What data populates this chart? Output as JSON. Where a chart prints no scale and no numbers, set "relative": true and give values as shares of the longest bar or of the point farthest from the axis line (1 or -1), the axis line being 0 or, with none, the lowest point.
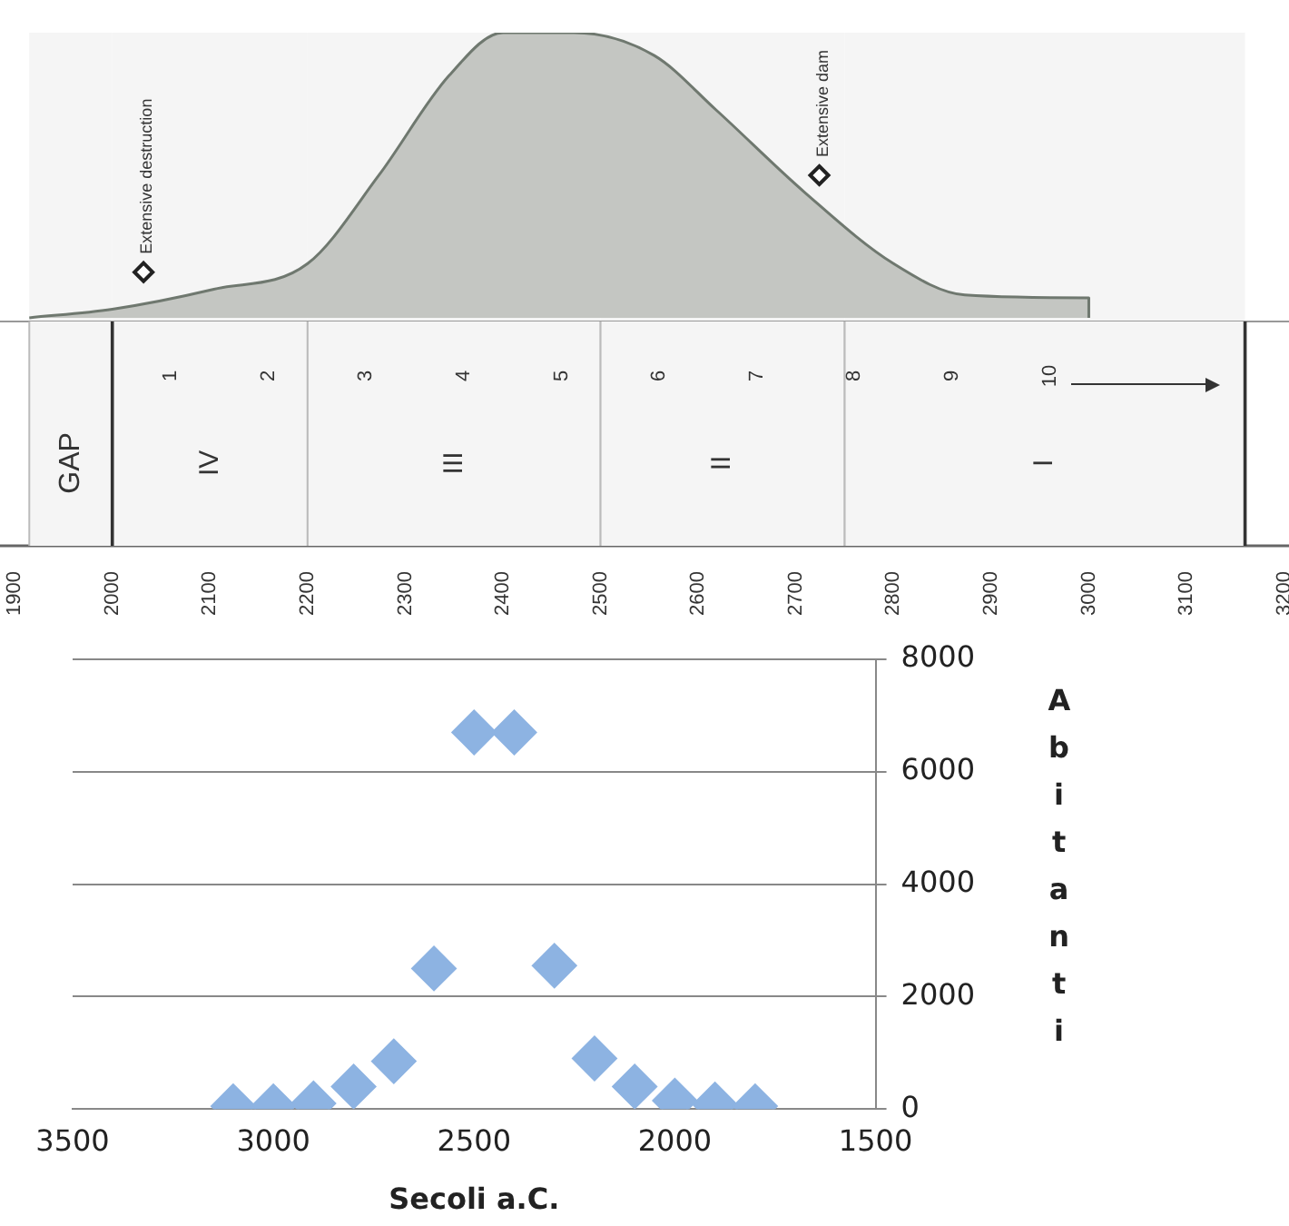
{
  "chart_data": [
    {
      "type": "area",
      "relative": true,
      "color": "#c4c6c2",
      "xlim": [
        1885,
        3205
      ],
      "xticks": [
        1900,
        2000,
        2100,
        2200,
        2300,
        2400,
        2500,
        2600,
        2700,
        2800,
        2900,
        3000,
        3100,
        3200
      ],
      "x": [
        1915,
        2000,
        2104,
        2200,
        2273,
        2345,
        2400,
        2473,
        2555,
        2618,
        2709,
        2800,
        2873,
        3000,
        3000
      ],
      "values": [
        0,
        0.03,
        0.1,
        0.19,
        0.5,
        0.85,
        1,
        1,
        0.92,
        0.73,
        0.44,
        0.19,
        0.08,
        0.07,
        0
      ],
      "annotations": [
        {
          "text": "Extensive destruction",
          "x": 2032,
          "y": 0.16
        },
        {
          "text": "Extensive dam",
          "x": 2724,
          "y": 0.5
        },
        "1",
        "2",
        "3",
        "4",
        "5",
        "6",
        "7",
        "8",
        "9",
        "10"
      ],
      "bands": [
        {
          "axis": "x",
          "from": 1915,
          "to": 2000,
          "label": "GAP",
          "color": "#f5f5f5"
        },
        {
          "axis": "x",
          "from": 2000,
          "to": 2200,
          "label": "IV",
          "color": "#f5f5f5"
        },
        {
          "axis": "x",
          "from": 2200,
          "to": 2500,
          "label": "III",
          "color": "#f5f5f5"
        },
        {
          "axis": "x",
          "from": 2500,
          "to": 2750,
          "label": "II",
          "color": "#f5f5f5"
        },
        {
          "axis": "x",
          "from": 2750,
          "to": 3160,
          "label": "I",
          "color": "#f5f5f5"
        }
      ]
    },
    {
      "type": "scatter",
      "color": "#8db3e2",
      "marker": "diamond",
      "grid": "y",
      "xlabel": "Secoli a.C.",
      "ylabel": "Abitanti",
      "xlim": [
        3500,
        1500
      ],
      "xticks": [
        3500,
        3000,
        2500,
        2000,
        1500
      ],
      "ylim": [
        0,
        8000
      ],
      "yticks": [
        0,
        2000,
        4000,
        6000,
        8000
      ],
      "x": [
        3100,
        3000,
        2900,
        2800,
        2700,
        2600,
        2500,
        2400,
        2300,
        2200,
        2100,
        2000,
        1900,
        1800
      ],
      "values": [
        50,
        50,
        100,
        400,
        850,
        2500,
        6700,
        6700,
        2550,
        900,
        400,
        150,
        80,
        50
      ]
    }
  ]
}
